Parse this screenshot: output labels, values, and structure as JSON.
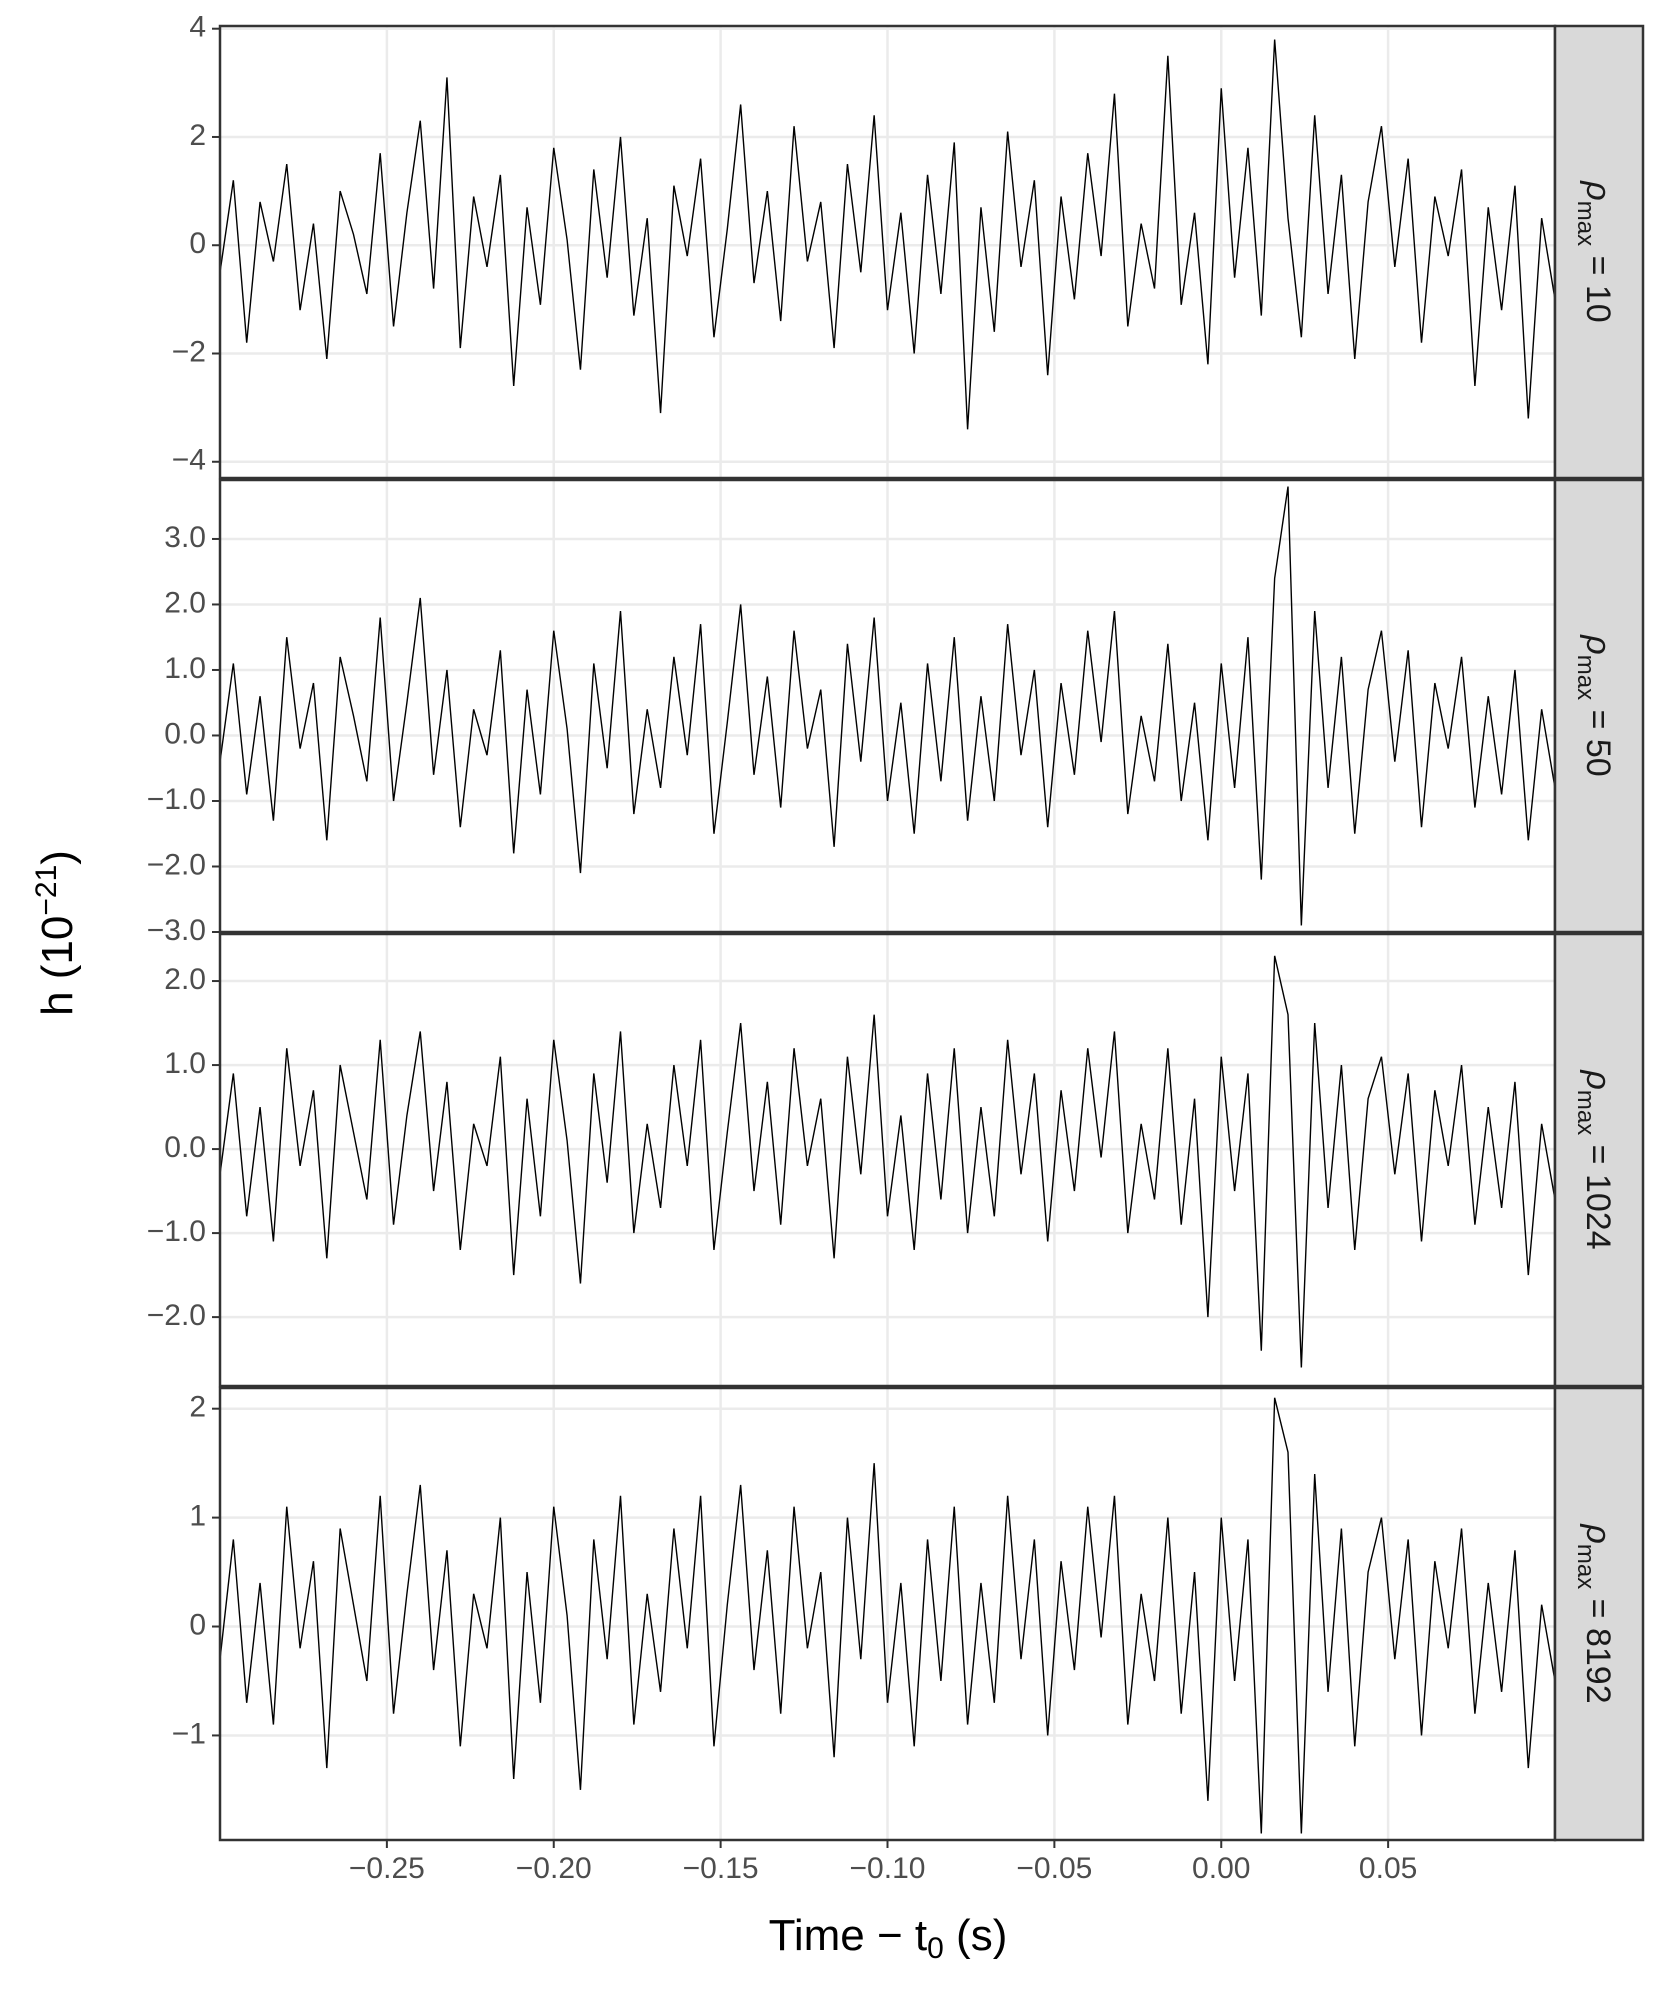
{
  "chart_data": {
    "type": "line",
    "xlabel": {
      "text": "Time − t",
      "sub": "0",
      "after": " (s)"
    },
    "ylabel": {
      "text": "h (10",
      "sup": "−21",
      "after": ")"
    },
    "xlim": [
      -0.3,
      0.1
    ],
    "xticks": [
      {
        "value": -0.25,
        "label": "−0.25"
      },
      {
        "value": -0.2,
        "label": "−0.20"
      },
      {
        "value": -0.15,
        "label": "−0.15"
      },
      {
        "value": -0.1,
        "label": "−0.10"
      },
      {
        "value": -0.05,
        "label": "−0.05"
      },
      {
        "value": 0,
        "label": "0.00"
      },
      {
        "value": 0.05,
        "label": "0.05"
      }
    ],
    "grid": true,
    "color": "#000000",
    "x": [
      -0.3,
      -0.296,
      -0.292,
      -0.288,
      -0.284,
      -0.28,
      -0.276,
      -0.272,
      -0.268,
      -0.264,
      -0.26,
      -0.256,
      -0.252,
      -0.248,
      -0.244,
      -0.24,
      -0.236,
      -0.232,
      -0.228,
      -0.224,
      -0.22,
      -0.216,
      -0.212,
      -0.208,
      -0.204,
      -0.2,
      -0.196,
      -0.192,
      -0.188,
      -0.184,
      -0.18,
      -0.176,
      -0.172,
      -0.168,
      -0.164,
      -0.16,
      -0.156,
      -0.152,
      -0.148,
      -0.144,
      -0.14,
      -0.136,
      -0.132,
      -0.128,
      -0.124,
      -0.12,
      -0.116,
      -0.112,
      -0.108,
      -0.104,
      -0.1,
      -0.096,
      -0.092,
      -0.088,
      -0.084,
      -0.08,
      -0.076,
      -0.072,
      -0.068,
      -0.064,
      -0.06,
      -0.056,
      -0.052,
      -0.048,
      -0.044,
      -0.04,
      -0.036,
      -0.032,
      -0.028,
      -0.024,
      -0.02,
      -0.016,
      -0.012,
      -0.008,
      -0.004,
      0,
      0.004,
      0.008,
      0.012,
      0.016,
      0.02,
      0.024,
      0.028,
      0.032,
      0.036,
      0.04,
      0.044,
      0.048,
      0.052,
      0.056,
      0.06,
      0.064,
      0.068,
      0.072,
      0.076,
      0.08,
      0.084,
      0.088,
      0.092,
      0.096,
      0.1
    ],
    "series": [
      {
        "name": {
          "symbol": "ρ",
          "sub": "max",
          "text": " = 10"
        },
        "ylim": [
          -4.3,
          4.05
        ],
        "yticks": [
          {
            "value": -4,
            "label": "−4"
          },
          {
            "value": -2,
            "label": "−2"
          },
          0,
          2,
          4
        ],
        "values": [
          -0.5,
          1.2,
          -1.8,
          0.8,
          -0.3,
          1.5,
          -1.2,
          0.4,
          -2.1,
          1.0,
          0.2,
          -0.9,
          1.7,
          -1.5,
          0.6,
          2.3,
          -0.8,
          3.1,
          -1.9,
          0.9,
          -0.4,
          1.3,
          -2.6,
          0.7,
          -1.1,
          1.8,
          0.1,
          -2.3,
          1.4,
          -0.6,
          2.0,
          -1.3,
          0.5,
          -3.1,
          1.1,
          -0.2,
          1.6,
          -1.7,
          0.3,
          2.6,
          -0.7,
          1.0,
          -1.4,
          2.2,
          -0.3,
          0.8,
          -1.9,
          1.5,
          -0.5,
          2.4,
          -1.2,
          0.6,
          -2.0,
          1.3,
          -0.9,
          1.9,
          -3.4,
          0.7,
          -1.6,
          2.1,
          -0.4,
          1.2,
          -2.4,
          0.9,
          -1.0,
          1.7,
          -0.2,
          2.8,
          -1.5,
          0.4,
          -0.8,
          3.5,
          -1.1,
          0.6,
          -2.2,
          2.9,
          -0.6,
          1.8,
          -1.3,
          3.8,
          0.5,
          -1.7,
          2.4,
          -0.9,
          1.3,
          -2.1,
          0.8,
          2.2,
          -0.4,
          1.6,
          -1.8,
          0.9,
          -0.2,
          1.4,
          -2.6,
          0.7,
          -1.2,
          1.1,
          -3.2,
          0.5,
          -1.0
        ]
      },
      {
        "name": {
          "symbol": "ρ",
          "sub": "max",
          "text": " = 50"
        },
        "ylim": [
          -3.0,
          3.9
        ],
        "yticks": [
          {
            "value": -3,
            "label": "−3.0"
          },
          {
            "value": -2,
            "label": "−2.0"
          },
          {
            "value": -1,
            "label": "−1.0"
          },
          {
            "value": 0,
            "label": "0.0"
          },
          {
            "value": 1,
            "label": "1.0"
          },
          {
            "value": 2,
            "label": "2.0"
          },
          {
            "value": 3,
            "label": "3.0"
          }
        ],
        "values": [
          -0.4,
          1.1,
          -0.9,
          0.6,
          -1.3,
          1.5,
          -0.2,
          0.8,
          -1.6,
          1.2,
          0.3,
          -0.7,
          1.8,
          -1.0,
          0.5,
          2.1,
          -0.6,
          1.0,
          -1.4,
          0.4,
          -0.3,
          1.3,
          -1.8,
          0.7,
          -0.9,
          1.6,
          0.1,
          -2.1,
          1.1,
          -0.5,
          1.9,
          -1.2,
          0.4,
          -0.8,
          1.2,
          -0.3,
          1.7,
          -1.5,
          0.2,
          2.0,
          -0.6,
          0.9,
          -1.1,
          1.6,
          -0.2,
          0.7,
          -1.7,
          1.4,
          -0.4,
          1.8,
          -1.0,
          0.5,
          -1.5,
          1.1,
          -0.7,
          1.5,
          -1.3,
          0.6,
          -1.0,
          1.7,
          -0.3,
          1.0,
          -1.4,
          0.8,
          -0.6,
          1.6,
          -0.1,
          1.9,
          -1.2,
          0.3,
          -0.7,
          1.4,
          -1.0,
          0.5,
          -1.6,
          1.1,
          -0.8,
          1.5,
          -2.2,
          2.4,
          3.8,
          -2.9,
          1.9,
          -0.8,
          1.2,
          -1.5,
          0.7,
          1.6,
          -0.4,
          1.3,
          -1.4,
          0.8,
          -0.2,
          1.2,
          -1.1,
          0.6,
          -0.9,
          1.0,
          -1.6,
          0.4,
          -0.8
        ]
      },
      {
        "name": {
          "symbol": "ρ",
          "sub": "max",
          "text": " = 1024"
        },
        "ylim": [
          -2.82,
          2.56
        ],
        "yticks": [
          {
            "value": -2,
            "label": "−2.0"
          },
          {
            "value": -1,
            "label": "−1.0"
          },
          {
            "value": 0,
            "label": "0.0"
          },
          {
            "value": 1,
            "label": "1.0"
          },
          {
            "value": 2,
            "label": "2.0"
          }
        ],
        "values": [
          -0.3,
          0.9,
          -0.8,
          0.5,
          -1.1,
          1.2,
          -0.2,
          0.7,
          -1.3,
          1.0,
          0.2,
          -0.6,
          1.3,
          -0.9,
          0.4,
          1.4,
          -0.5,
          0.8,
          -1.2,
          0.3,
          -0.2,
          1.1,
          -1.5,
          0.6,
          -0.8,
          1.3,
          0.1,
          -1.6,
          0.9,
          -0.4,
          1.4,
          -1.0,
          0.3,
          -0.7,
          1.0,
          -0.2,
          1.3,
          -1.2,
          0.2,
          1.5,
          -0.5,
          0.8,
          -0.9,
          1.2,
          -0.2,
          0.6,
          -1.3,
          1.1,
          -0.3,
          1.6,
          -0.8,
          0.4,
          -1.2,
          0.9,
          -0.6,
          1.2,
          -1.0,
          0.5,
          -0.8,
          1.3,
          -0.3,
          0.9,
          -1.1,
          0.7,
          -0.5,
          1.2,
          -0.1,
          1.4,
          -1.0,
          0.3,
          -0.6,
          1.2,
          -0.9,
          0.6,
          -2.0,
          1.1,
          -0.5,
          0.9,
          -2.4,
          2.3,
          1.6,
          -2.6,
          1.5,
          -0.7,
          1.0,
          -1.2,
          0.6,
          1.1,
          -0.3,
          0.9,
          -1.1,
          0.7,
          -0.2,
          1.0,
          -0.9,
          0.5,
          -0.7,
          0.8,
          -1.5,
          0.3,
          -0.6
        ]
      },
      {
        "name": {
          "symbol": "ρ",
          "sub": "max",
          "text": " = 8192"
        },
        "ylim": [
          -1.96,
          2.19
        ],
        "yticks": [
          {
            "value": -1,
            "label": "−1"
          },
          0,
          1,
          2
        ],
        "values": [
          -0.3,
          0.8,
          -0.7,
          0.4,
          -0.9,
          1.1,
          -0.2,
          0.6,
          -1.3,
          0.9,
          0.2,
          -0.5,
          1.2,
          -0.8,
          0.3,
          1.3,
          -0.4,
          0.7,
          -1.1,
          0.3,
          -0.2,
          1.0,
          -1.4,
          0.5,
          -0.7,
          1.1,
          0.1,
          -1.5,
          0.8,
          -0.3,
          1.2,
          -0.9,
          0.3,
          -0.6,
          0.9,
          -0.2,
          1.2,
          -1.1,
          0.2,
          1.3,
          -0.4,
          0.7,
          -0.8,
          1.1,
          -0.2,
          0.5,
          -1.2,
          1.0,
          -0.3,
          1.5,
          -0.7,
          0.4,
          -1.1,
          0.8,
          -0.5,
          1.1,
          -0.9,
          0.4,
          -0.7,
          1.2,
          -0.3,
          0.8,
          -1.0,
          0.6,
          -0.4,
          1.1,
          -0.1,
          1.2,
          -0.9,
          0.3,
          -0.5,
          1.0,
          -0.8,
          0.5,
          -1.6,
          1.0,
          -0.5,
          0.8,
          -1.9,
          2.1,
          1.6,
          -1.9,
          1.4,
          -0.6,
          0.9,
          -1.1,
          0.5,
          1.0,
          -0.3,
          0.8,
          -1.0,
          0.6,
          -0.2,
          0.9,
          -0.8,
          0.4,
          -0.6,
          0.7,
          -1.3,
          0.2,
          -0.5
        ]
      }
    ]
  }
}
